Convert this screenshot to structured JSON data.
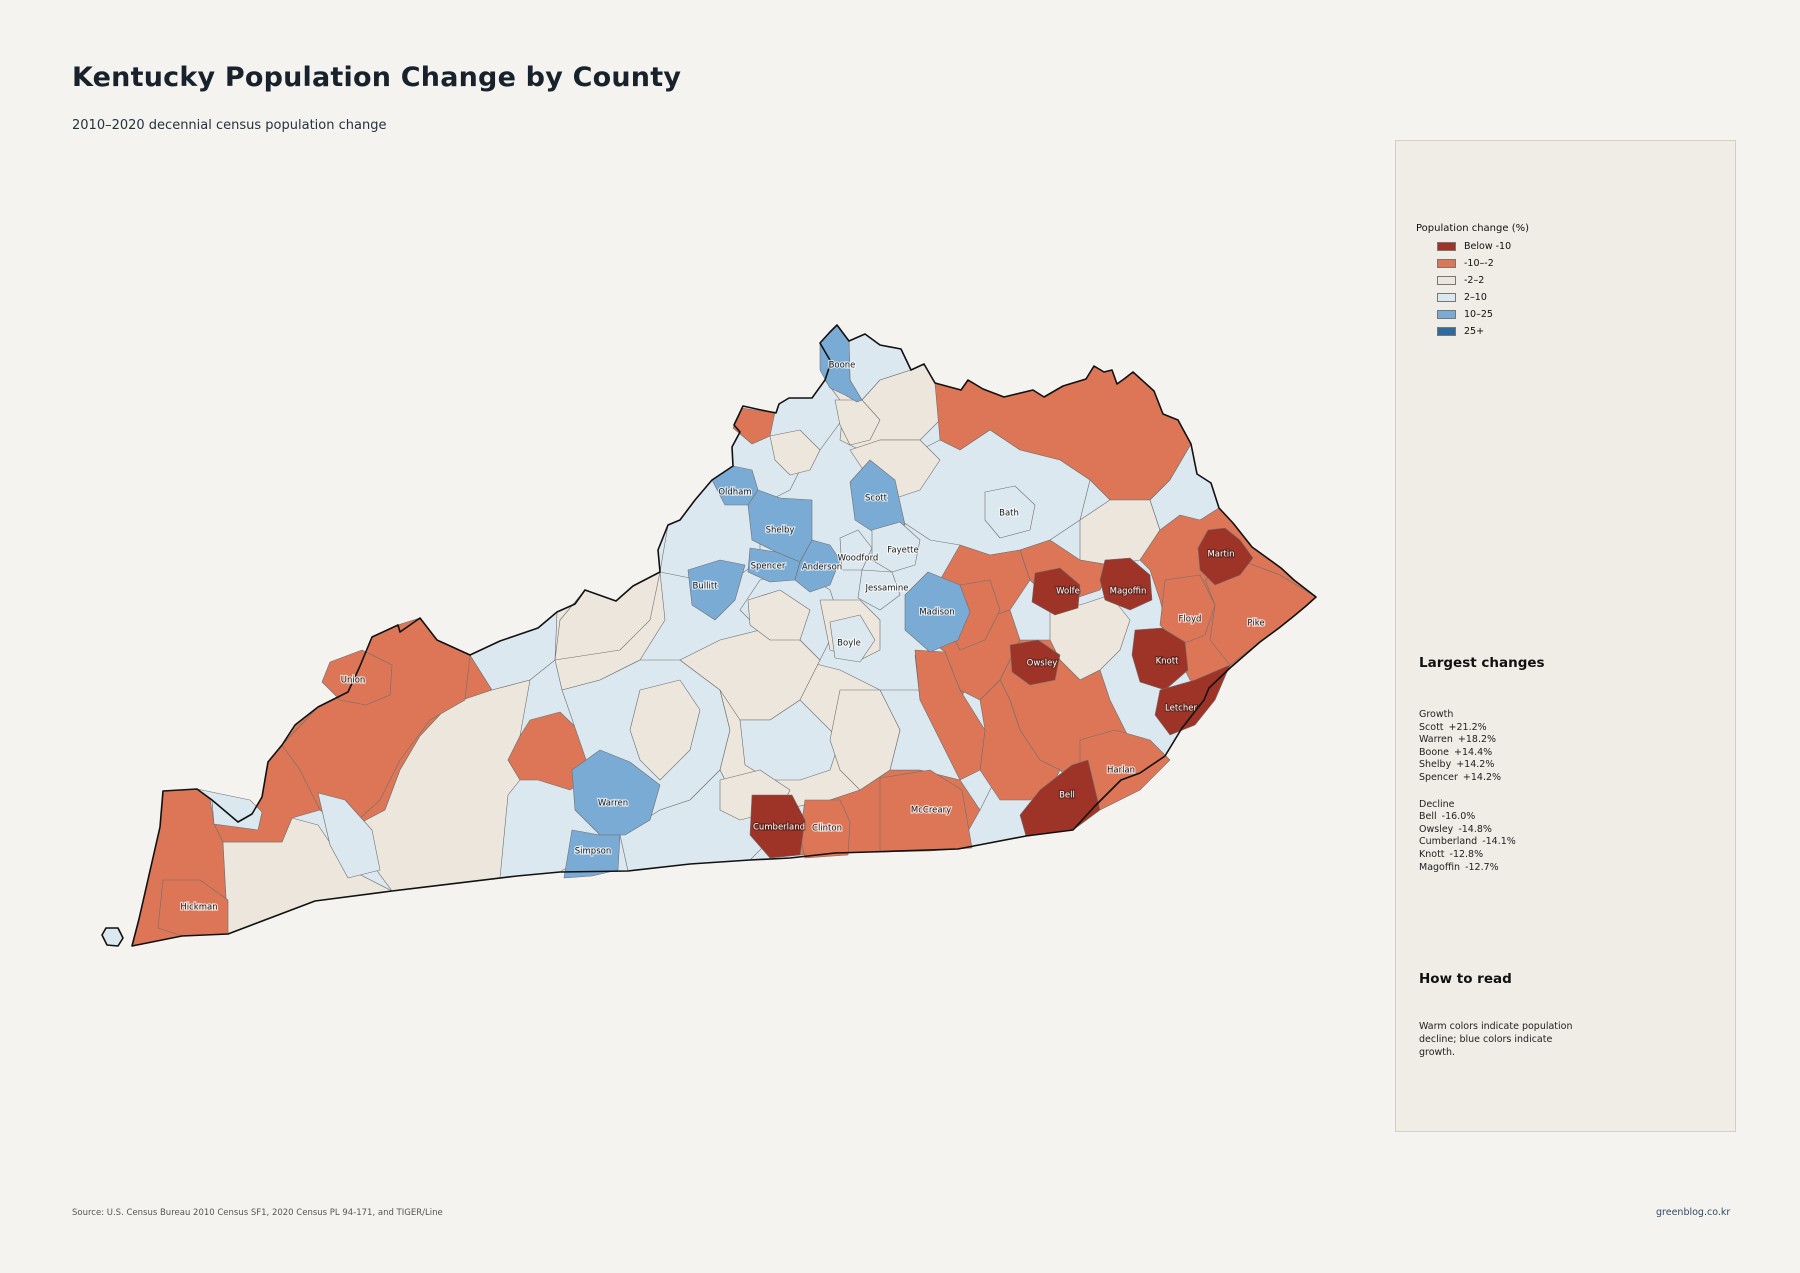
{
  "title": "Kentucky Population Change by County",
  "subtitle": "2010–2020 decennial census population change",
  "legend": {
    "title": "Population change (%)",
    "items": [
      {
        "label": "Below -10",
        "color": "#9e3427"
      },
      {
        "label": "-10–-2",
        "color": "#dc7656"
      },
      {
        "label": "-2–2",
        "color": "#ece6dc"
      },
      {
        "label": "2–10",
        "color": "#dbe8ef"
      },
      {
        "label": "10–25",
        "color": "#7aabd4"
      },
      {
        "label": "25+",
        "color": "#2c6a9f"
      }
    ]
  },
  "largest_changes": {
    "heading": "Largest changes",
    "growth_label": "Growth",
    "growth": [
      {
        "name": "Scott",
        "value": "+21.2%"
      },
      {
        "name": "Warren",
        "value": "+18.2%"
      },
      {
        "name": "Boone",
        "value": "+14.4%"
      },
      {
        "name": "Shelby",
        "value": "+14.2%"
      },
      {
        "name": "Spencer",
        "value": "+14.2%"
      }
    ],
    "decline_label": "Decline",
    "decline": [
      {
        "name": "Bell",
        "value": "-16.0%"
      },
      {
        "name": "Owsley",
        "value": "-14.8%"
      },
      {
        "name": "Cumberland",
        "value": "-14.1%"
      },
      {
        "name": "Knott",
        "value": "-12.8%"
      },
      {
        "name": "Magoffin",
        "value": "-12.7%"
      }
    ]
  },
  "how_to_read": {
    "heading": "How to read",
    "text": "Warm colors indicate population decline; blue colors indicate growth."
  },
  "source": "Source: U.S. Census Bureau 2010 Census SF1, 2020 Census PL 94-171, and TIGER/Line",
  "credit": "greenblog.co.kr",
  "map_labels": [
    {
      "name": "Boone",
      "cls": "10–25"
    },
    {
      "name": "Oldham",
      "cls": "10–25"
    },
    {
      "name": "Scott",
      "cls": "10–25"
    },
    {
      "name": "Shelby",
      "cls": "10–25"
    },
    {
      "name": "Spencer",
      "cls": "10–25"
    },
    {
      "name": "Anderson",
      "cls": "10–25"
    },
    {
      "name": "Bullitt",
      "cls": "10–25"
    },
    {
      "name": "Woodford",
      "cls": "2–10"
    },
    {
      "name": "Fayette",
      "cls": "2–10"
    },
    {
      "name": "Jessamine",
      "cls": "2–10"
    },
    {
      "name": "Bath",
      "cls": "2–10"
    },
    {
      "name": "Madison",
      "cls": "10–25"
    },
    {
      "name": "Boyle",
      "cls": "2–10"
    },
    {
      "name": "Martin",
      "cls": "Below -10"
    },
    {
      "name": "Wolfe",
      "cls": "Below -10"
    },
    {
      "name": "Magoffin",
      "cls": "Below -10"
    },
    {
      "name": "Floyd",
      "cls": "-10–-2"
    },
    {
      "name": "Pike",
      "cls": "-10–-2"
    },
    {
      "name": "Owsley",
      "cls": "Below -10"
    },
    {
      "name": "Knott",
      "cls": "Below -10"
    },
    {
      "name": "Letcher",
      "cls": "Below -10"
    },
    {
      "name": "Harlan",
      "cls": "-10–-2"
    },
    {
      "name": "Bell",
      "cls": "Below -10"
    },
    {
      "name": "McCreary",
      "cls": "-10–-2"
    },
    {
      "name": "Clinton",
      "cls": "-10–-2"
    },
    {
      "name": "Cumberland",
      "cls": "Below -10"
    },
    {
      "name": "Warren",
      "cls": "10–25"
    },
    {
      "name": "Simpson",
      "cls": "10–25"
    },
    {
      "name": "Union",
      "cls": "-10–-2"
    },
    {
      "name": "Hickman",
      "cls": "-10–-2"
    }
  ]
}
